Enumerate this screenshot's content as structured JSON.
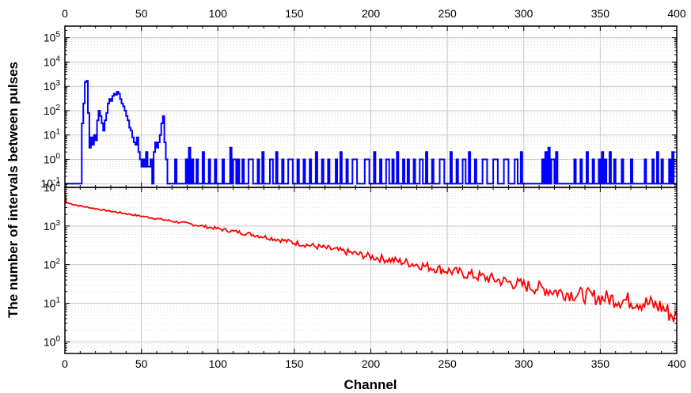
{
  "chart_data": {
    "type": "line",
    "xlabel": "Channel",
    "ylabel": "The number of intervals between pulses",
    "xlim": [
      0,
      400
    ],
    "x_ticks": [
      0,
      50,
      100,
      150,
      200,
      250,
      300,
      350,
      400
    ],
    "top_axis_ticks": [
      0,
      50,
      100,
      150,
      200,
      250,
      300,
      350,
      400
    ],
    "grid": true,
    "panels": [
      {
        "position": "top",
        "yscale": "log",
        "ylim": [
          0.07,
          300000
        ],
        "y_ticks": [
          "10^-1",
          "10^0",
          "10^1",
          "10^2",
          "10^3",
          "10^4",
          "10^5"
        ],
        "series": [
          {
            "style": "step",
            "color": "#0000ff",
            "baseline": 0.1,
            "points": [
              [
                0,
                0.1
              ],
              [
                10,
                0.1
              ],
              [
                11,
                30
              ],
              [
                12,
                200
              ],
              [
                13,
                1500
              ],
              [
                14,
                1700
              ],
              [
                15,
                80
              ],
              [
                16,
                3
              ],
              [
                17,
                8
              ],
              [
                18,
                4
              ],
              [
                19,
                10
              ],
              [
                20,
                6
              ],
              [
                21,
                40
              ],
              [
                22,
                100
              ],
              [
                23,
                60
              ],
              [
                24,
                30
              ],
              [
                25,
                15
              ],
              [
                26,
                40
              ],
              [
                27,
                80
              ],
              [
                28,
                200
              ],
              [
                29,
                300
              ],
              [
                30,
                250
              ],
              [
                31,
                400
              ],
              [
                32,
                500
              ],
              [
                33,
                450
              ],
              [
                34,
                600
              ],
              [
                35,
                500
              ],
              [
                36,
                300
              ],
              [
                37,
                200
              ],
              [
                38,
                150
              ],
              [
                39,
                100
              ],
              [
                40,
                60
              ],
              [
                41,
                40
              ],
              [
                42,
                20
              ],
              [
                43,
                15
              ],
              [
                44,
                8
              ],
              [
                45,
                5
              ],
              [
                46,
                4
              ],
              [
                47,
                8
              ],
              [
                48,
                2
              ],
              [
                49,
                1
              ],
              [
                50,
                0.5
              ],
              [
                51,
                1
              ],
              [
                52,
                0.5
              ],
              [
                53,
                2
              ],
              [
                54,
                0.5
              ],
              [
                55,
                0.5
              ],
              [
                56,
                1
              ],
              [
                57,
                0.1
              ],
              [
                58,
                2
              ],
              [
                59,
                5
              ],
              [
                60,
                3
              ],
              [
                61,
                5
              ],
              [
                62,
                10
              ],
              [
                63,
                30
              ],
              [
                64,
                60
              ],
              [
                65,
                5
              ],
              [
                66,
                1
              ],
              [
                67,
                0.1
              ],
              [
                72,
                1
              ],
              [
                73,
                0.1
              ],
              [
                79,
                1
              ],
              [
                80,
                0.1
              ],
              [
                81,
                3
              ],
              [
                82,
                0.1
              ],
              [
                83,
                1
              ],
              [
                84,
                0.1
              ],
              [
                86,
                1
              ],
              [
                87,
                0.1
              ],
              [
                90,
                2
              ],
              [
                91,
                0.1
              ],
              [
                94,
                1
              ],
              [
                95,
                0.1
              ],
              [
                98,
                1
              ],
              [
                99,
                0.1
              ],
              [
                103,
                1
              ],
              [
                104,
                0.1
              ],
              [
                108,
                3
              ],
              [
                109,
                0.1
              ],
              [
                110,
                1
              ],
              [
                112,
                0.1
              ],
              [
                113,
                1
              ],
              [
                114,
                0.1
              ],
              [
                116,
                1
              ],
              [
                117,
                0.1
              ],
              [
                120,
                1
              ],
              [
                123,
                0.1
              ],
              [
                126,
                1
              ],
              [
                127,
                0.1
              ],
              [
                129,
                2
              ],
              [
                130,
                0.1
              ],
              [
                134,
                1
              ],
              [
                136,
                0.1
              ],
              [
                138,
                2
              ],
              [
                139,
                0.1
              ],
              [
                142,
                1
              ],
              [
                143,
                0.1
              ],
              [
                146,
                1
              ],
              [
                149,
                0.1
              ],
              [
                152,
                1
              ],
              [
                153,
                0.1
              ],
              [
                156,
                1
              ],
              [
                157,
                0.1
              ],
              [
                160,
                1
              ],
              [
                161,
                0.1
              ],
              [
                164,
                2
              ],
              [
                165,
                0.1
              ],
              [
                168,
                1
              ],
              [
                169,
                0.1
              ],
              [
                172,
                1
              ],
              [
                173,
                0.1
              ],
              [
                177,
                1
              ],
              [
                178,
                0.1
              ],
              [
                180,
                2
              ],
              [
                181,
                0.1
              ],
              [
                184,
                1
              ],
              [
                185,
                0.1
              ],
              [
                188,
                1
              ],
              [
                191,
                0.1
              ],
              [
                196,
                1
              ],
              [
                199,
                0.1
              ],
              [
                202,
                2
              ],
              [
                203,
                0.1
              ],
              [
                206,
                1
              ],
              [
                207,
                0.1
              ],
              [
                210,
                1
              ],
              [
                212,
                0.1
              ],
              [
                214,
                1
              ],
              [
                215,
                0.1
              ],
              [
                217,
                2
              ],
              [
                218,
                0.1
              ],
              [
                221,
                1
              ],
              [
                222,
                0.1
              ],
              [
                224,
                1
              ],
              [
                225,
                0.1
              ],
              [
                228,
                1
              ],
              [
                229,
                0.1
              ],
              [
                232,
                1
              ],
              [
                234,
                0.1
              ],
              [
                236,
                2
              ],
              [
                237,
                0.1
              ],
              [
                240,
                1
              ],
              [
                241,
                0.1
              ],
              [
                245,
                1
              ],
              [
                248,
                0.1
              ],
              [
                252,
                2
              ],
              [
                253,
                0.1
              ],
              [
                256,
                1
              ],
              [
                257,
                0.1
              ],
              [
                260,
                1
              ],
              [
                262,
                0.1
              ],
              [
                264,
                2
              ],
              [
                265,
                0.1
              ],
              [
                268,
                1
              ],
              [
                269,
                0.1
              ],
              [
                273,
                1
              ],
              [
                276,
                0.1
              ],
              [
                280,
                1
              ],
              [
                283,
                0.1
              ],
              [
                287,
                1
              ],
              [
                290,
                0.1
              ],
              [
                294,
                1
              ],
              [
                296,
                0.1
              ],
              [
                298,
                2
              ],
              [
                299,
                0.1
              ],
              [
                312,
                1
              ],
              [
                313,
                0.1
              ],
              [
                314,
                2
              ],
              [
                315,
                0.1
              ],
              [
                316,
                3
              ],
              [
                317,
                0.1
              ],
              [
                318,
                1
              ],
              [
                320,
                0.1
              ],
              [
                321,
                2
              ],
              [
                322,
                0.1
              ],
              [
                333,
                1
              ],
              [
                334,
                0.1
              ],
              [
                337,
                1
              ],
              [
                338,
                0.1
              ],
              [
                341,
                2
              ],
              [
                342,
                0.1
              ],
              [
                345,
                1
              ],
              [
                346,
                0.1
              ],
              [
                349,
                1
              ],
              [
                350,
                0.1
              ],
              [
                351,
                2
              ],
              [
                352,
                0.1
              ],
              [
                353,
                1
              ],
              [
                354,
                0.1
              ],
              [
                356,
                2
              ],
              [
                357,
                0.1
              ],
              [
                359,
                1
              ],
              [
                360,
                0.1
              ],
              [
                364,
                1
              ],
              [
                365,
                0.1
              ],
              [
                370,
                1
              ],
              [
                371,
                0.1
              ],
              [
                379,
                1
              ],
              [
                380,
                0.1
              ],
              [
                384,
                1
              ],
              [
                385,
                0.1
              ],
              [
                387,
                2
              ],
              [
                388,
                0.1
              ],
              [
                390,
                1
              ],
              [
                391,
                0.1
              ],
              [
                395,
                1
              ],
              [
                396,
                0.1
              ],
              [
                397,
                2
              ],
              [
                398,
                0.1
              ],
              [
                400,
                0.1
              ]
            ]
          }
        ]
      },
      {
        "position": "bottom",
        "yscale": "log",
        "ylim": [
          0.5,
          10000
        ],
        "y_ticks": [
          "10^0",
          "10^1",
          "10^2",
          "10^3",
          "10^4"
        ],
        "series": [
          {
            "style": "noisy-line",
            "color": "#ff0000",
            "points": [
              [
                0,
                8000
              ],
              [
                1,
                4000
              ],
              [
                10,
                3300
              ],
              [
                25,
                2600
              ],
              [
                50,
                1800
              ],
              [
                75,
                1250
              ],
              [
                100,
                850
              ],
              [
                125,
                580
              ],
              [
                150,
                370
              ],
              [
                175,
                250
              ],
              [
                200,
                160
              ],
              [
                225,
                110
              ],
              [
                250,
                70
              ],
              [
                275,
                46
              ],
              [
                300,
                29
              ],
              [
                325,
                19
              ],
              [
                350,
                14
              ],
              [
                375,
                11
              ],
              [
                390,
                8
              ],
              [
                400,
                4
              ]
            ]
          }
        ]
      }
    ]
  }
}
